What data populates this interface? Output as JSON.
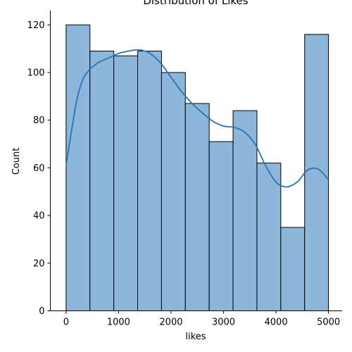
{
  "chart_data": {
    "type": "bar",
    "title": "Distribution of Likes",
    "xlabel": "likes",
    "ylabel": "Count",
    "xlim": [
      -300,
      5260
    ],
    "ylim": [
      0,
      126
    ],
    "xticks": [
      0,
      1000,
      2000,
      3000,
      4000,
      5000
    ],
    "yticks": [
      0,
      20,
      40,
      60,
      80,
      100,
      120
    ],
    "xtick_labels": [
      "0",
      "1000",
      "2000",
      "3000",
      "4000",
      "5000"
    ],
    "ytick_labels": [
      "0",
      "20",
      "40",
      "60",
      "80",
      "100",
      "120"
    ],
    "bin_edges": [
      0,
      454.5,
      909.1,
      1363.6,
      1818.2,
      2272.7,
      2727.3,
      3181.8,
      3636.4,
      4090.9,
      4545.5,
      5000
    ],
    "values": [
      120,
      109,
      107,
      109,
      100,
      87,
      71,
      84,
      62,
      35,
      116
    ],
    "bar_color": "#8cb7db",
    "kde_color": "#2a74b2",
    "kde": {
      "x": [
        0,
        100,
        200,
        300,
        400,
        600,
        800,
        1000,
        1200,
        1400,
        1600,
        1800,
        2000,
        2200,
        2400,
        2600,
        2800,
        3000,
        3200,
        3400,
        3600,
        3800,
        4000,
        4200,
        4400,
        4600,
        4800,
        5000
      ],
      "y": [
        61,
        75,
        88,
        96,
        100,
        104,
        106,
        108,
        109,
        109.5,
        108,
        104,
        98,
        92,
        87,
        83,
        79.5,
        77.5,
        77,
        75,
        70,
        61,
        54,
        52,
        54,
        59,
        59.5,
        55
      ]
    },
    "grid": false,
    "legend": "none"
  }
}
